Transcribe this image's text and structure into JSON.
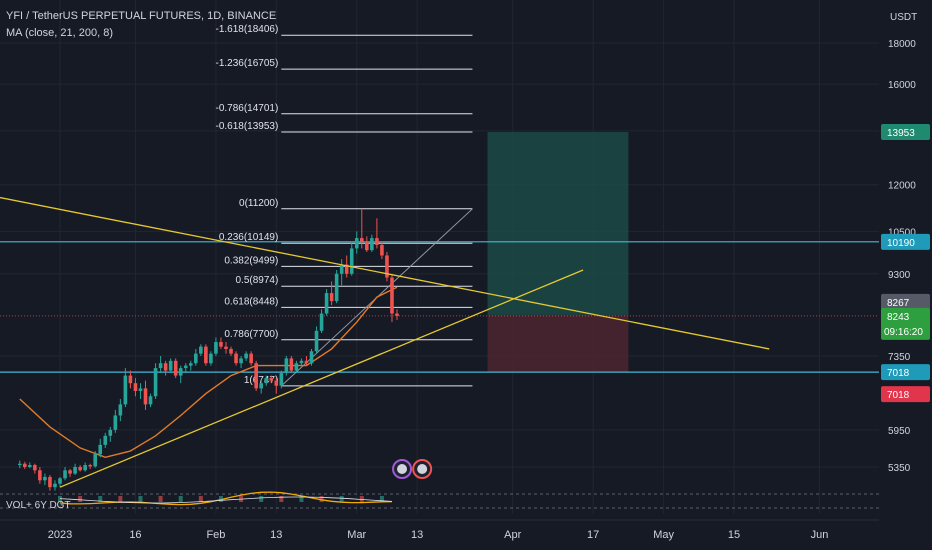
{
  "header": {
    "symbol": "YFI / TetherUS PERPETUAL FUTURES, 1D, BINANCE",
    "indicator": "MA (close, 21, 200, 8)",
    "volume_indicator": "VOL+ 6Y DGT"
  },
  "colors": {
    "background": "#161a25",
    "grid": "#222631",
    "text": "#d1d4dc",
    "up": "#26a69a",
    "down": "#ef5350",
    "ma": "#e07b2b",
    "trendline": "#e6c930",
    "horizontal": "#40b9d6",
    "target_zone": "#1b4a45",
    "stop_zone": "#4a2530",
    "fib": "#e0e3eb"
  },
  "chart_data": {
    "type": "candlestick",
    "title": "YFI / TetherUS PERPETUAL FUTURES, 1D, BINANCE",
    "xlabel": "",
    "ylabel": "USDT",
    "y_scale": "log",
    "ylim": [
      4900,
      19500
    ],
    "x_tick_labels": [
      "2023",
      "16",
      "Feb",
      "13",
      "Mar",
      "13",
      "Apr",
      "17",
      "May",
      "15",
      "Jun"
    ],
    "y_tick_labels": [
      "18000",
      "16000",
      "14000",
      "12000",
      "10500",
      "9300",
      "7350",
      "5950",
      "5350"
    ],
    "price_labels": [
      {
        "value": "13953",
        "style": "target"
      },
      {
        "value": "10190",
        "style": "line"
      },
      {
        "value": "8267",
        "style": "gray"
      },
      {
        "value": "8243",
        "style": "last",
        "sub": "09:16:20"
      },
      {
        "value": "7018",
        "style": "line"
      },
      {
        "value": "7018",
        "style": "stop"
      }
    ],
    "fib_levels": [
      {
        "label": "-1.618(18406)",
        "price": 18406
      },
      {
        "label": "-1.236(16705)",
        "price": 16705
      },
      {
        "label": "-0.786(14701)",
        "price": 14701
      },
      {
        "label": "-0.618(13953)",
        "price": 13953
      },
      {
        "label": "0(11200)",
        "price": 11200
      },
      {
        "label": "0.236(10149)",
        "price": 10149
      },
      {
        "label": "0.382(9499)",
        "price": 9499
      },
      {
        "label": "0.5(8974)",
        "price": 8974
      },
      {
        "label": "0.618(8448)",
        "price": 8448
      },
      {
        "label": "0.786(7700)",
        "price": 7700
      },
      {
        "label": "1(6747)",
        "price": 6747
      }
    ],
    "horizontal_lines": [
      10190,
      7018
    ],
    "position": {
      "entry": 8267,
      "target": 13953,
      "stop": 7018
    },
    "candles": [
      {
        "date": "2022-12-24",
        "o": 5380,
        "h": 5450,
        "l": 5330,
        "c": 5400
      },
      {
        "date": "2022-12-25",
        "o": 5400,
        "h": 5430,
        "l": 5320,
        "c": 5350
      },
      {
        "date": "2022-12-26",
        "o": 5350,
        "h": 5420,
        "l": 5330,
        "c": 5380
      },
      {
        "date": "2022-12-27",
        "o": 5380,
        "h": 5400,
        "l": 5250,
        "c": 5300
      },
      {
        "date": "2022-12-28",
        "o": 5300,
        "h": 5350,
        "l": 5100,
        "c": 5150
      },
      {
        "date": "2022-12-29",
        "o": 5150,
        "h": 5250,
        "l": 5080,
        "c": 5200
      },
      {
        "date": "2022-12-30",
        "o": 5200,
        "h": 5230,
        "l": 5000,
        "c": 5050
      },
      {
        "date": "2022-12-31",
        "o": 5050,
        "h": 5150,
        "l": 5000,
        "c": 5100
      },
      {
        "date": "2023-01-01",
        "o": 5100,
        "h": 5200,
        "l": 5050,
        "c": 5180
      },
      {
        "date": "2023-01-02",
        "o": 5180,
        "h": 5350,
        "l": 5150,
        "c": 5300
      },
      {
        "date": "2023-01-03",
        "o": 5300,
        "h": 5320,
        "l": 5200,
        "c": 5250
      },
      {
        "date": "2023-01-04",
        "o": 5250,
        "h": 5400,
        "l": 5230,
        "c": 5350
      },
      {
        "date": "2023-01-05",
        "o": 5350,
        "h": 5380,
        "l": 5280,
        "c": 5300
      },
      {
        "date": "2023-01-06",
        "o": 5300,
        "h": 5420,
        "l": 5280,
        "c": 5380
      },
      {
        "date": "2023-01-07",
        "o": 5380,
        "h": 5400,
        "l": 5320,
        "c": 5360
      },
      {
        "date": "2023-01-08",
        "o": 5360,
        "h": 5600,
        "l": 5340,
        "c": 5550
      },
      {
        "date": "2023-01-09",
        "o": 5550,
        "h": 5800,
        "l": 5500,
        "c": 5700
      },
      {
        "date": "2023-01-10",
        "o": 5700,
        "h": 5900,
        "l": 5650,
        "c": 5850
      },
      {
        "date": "2023-01-11",
        "o": 5850,
        "h": 6000,
        "l": 5750,
        "c": 5950
      },
      {
        "date": "2023-01-12",
        "o": 5950,
        "h": 6300,
        "l": 5900,
        "c": 6200
      },
      {
        "date": "2023-01-13",
        "o": 6200,
        "h": 6500,
        "l": 6100,
        "c": 6400
      },
      {
        "date": "2023-01-14",
        "o": 6400,
        "h": 7100,
        "l": 6350,
        "c": 6950
      },
      {
        "date": "2023-01-15",
        "o": 6950,
        "h": 7050,
        "l": 6700,
        "c": 6800
      },
      {
        "date": "2023-01-16",
        "o": 6800,
        "h": 6900,
        "l": 6550,
        "c": 6650
      },
      {
        "date": "2023-01-17",
        "o": 6650,
        "h": 6800,
        "l": 6500,
        "c": 6700
      },
      {
        "date": "2023-01-18",
        "o": 6700,
        "h": 6850,
        "l": 6300,
        "c": 6400
      },
      {
        "date": "2023-01-19",
        "o": 6400,
        "h": 6600,
        "l": 6350,
        "c": 6550
      },
      {
        "date": "2023-01-20",
        "o": 6550,
        "h": 7200,
        "l": 6500,
        "c": 7100
      },
      {
        "date": "2023-01-21",
        "o": 7100,
        "h": 7350,
        "l": 7000,
        "c": 7200
      },
      {
        "date": "2023-01-22",
        "o": 7200,
        "h": 7250,
        "l": 6950,
        "c": 7050
      },
      {
        "date": "2023-01-23",
        "o": 7050,
        "h": 7300,
        "l": 7000,
        "c": 7250
      },
      {
        "date": "2023-01-24",
        "o": 7250,
        "h": 7300,
        "l": 6900,
        "c": 6950
      },
      {
        "date": "2023-01-25",
        "o": 6950,
        "h": 7150,
        "l": 6800,
        "c": 7100
      },
      {
        "date": "2023-01-26",
        "o": 7100,
        "h": 7200,
        "l": 7000,
        "c": 7150
      },
      {
        "date": "2023-01-27",
        "o": 7150,
        "h": 7250,
        "l": 7050,
        "c": 7200
      },
      {
        "date": "2023-01-28",
        "o": 7200,
        "h": 7500,
        "l": 7150,
        "c": 7400
      },
      {
        "date": "2023-01-29",
        "o": 7400,
        "h": 7600,
        "l": 7350,
        "c": 7550
      },
      {
        "date": "2023-01-30",
        "o": 7550,
        "h": 7600,
        "l": 7150,
        "c": 7200
      },
      {
        "date": "2023-01-31",
        "o": 7200,
        "h": 7450,
        "l": 7150,
        "c": 7400
      },
      {
        "date": "2023-02-01",
        "o": 7400,
        "h": 7750,
        "l": 7350,
        "c": 7650
      },
      {
        "date": "2023-02-02",
        "o": 7650,
        "h": 7750,
        "l": 7500,
        "c": 7550
      },
      {
        "date": "2023-02-03",
        "o": 7550,
        "h": 7650,
        "l": 7400,
        "c": 7500
      },
      {
        "date": "2023-02-04",
        "o": 7500,
        "h": 7550,
        "l": 7350,
        "c": 7400
      },
      {
        "date": "2023-02-05",
        "o": 7400,
        "h": 7450,
        "l": 7150,
        "c": 7200
      },
      {
        "date": "2023-02-06",
        "o": 7200,
        "h": 7350,
        "l": 7100,
        "c": 7300
      },
      {
        "date": "2023-02-07",
        "o": 7300,
        "h": 7450,
        "l": 7250,
        "c": 7400
      },
      {
        "date": "2023-02-08",
        "o": 7400,
        "h": 7450,
        "l": 7150,
        "c": 7200
      },
      {
        "date": "2023-02-09",
        "o": 7200,
        "h": 7250,
        "l": 6650,
        "c": 6700
      },
      {
        "date": "2023-02-10",
        "o": 6700,
        "h": 6850,
        "l": 6600,
        "c": 6800
      },
      {
        "date": "2023-02-11",
        "o": 6800,
        "h": 6950,
        "l": 6750,
        "c": 6900
      },
      {
        "date": "2023-02-12",
        "o": 6900,
        "h": 6950,
        "l": 6800,
        "c": 6850
      },
      {
        "date": "2023-02-13",
        "o": 6850,
        "h": 6900,
        "l": 6600,
        "c": 6750
      },
      {
        "date": "2023-02-14",
        "o": 6750,
        "h": 7050,
        "l": 6700,
        "c": 7000
      },
      {
        "date": "2023-02-15",
        "o": 7000,
        "h": 7350,
        "l": 6950,
        "c": 7300
      },
      {
        "date": "2023-02-16",
        "o": 7300,
        "h": 7350,
        "l": 7000,
        "c": 7050
      },
      {
        "date": "2023-02-17",
        "o": 7050,
        "h": 7250,
        "l": 7000,
        "c": 7200
      },
      {
        "date": "2023-02-18",
        "o": 7200,
        "h": 7300,
        "l": 7150,
        "c": 7250
      },
      {
        "date": "2023-02-19",
        "o": 7250,
        "h": 7350,
        "l": 7150,
        "c": 7200
      },
      {
        "date": "2023-02-20",
        "o": 7200,
        "h": 7500,
        "l": 7150,
        "c": 7450
      },
      {
        "date": "2023-02-21",
        "o": 7450,
        "h": 8000,
        "l": 7400,
        "c": 7900
      },
      {
        "date": "2023-02-22",
        "o": 7900,
        "h": 8400,
        "l": 7850,
        "c": 8300
      },
      {
        "date": "2023-02-23",
        "o": 8300,
        "h": 8900,
        "l": 8250,
        "c": 8800
      },
      {
        "date": "2023-02-24",
        "o": 8800,
        "h": 9100,
        "l": 8500,
        "c": 8600
      },
      {
        "date": "2023-02-25",
        "o": 8600,
        "h": 9400,
        "l": 8550,
        "c": 9300
      },
      {
        "date": "2023-02-26",
        "o": 9300,
        "h": 9700,
        "l": 9000,
        "c": 9550
      },
      {
        "date": "2023-02-27",
        "o": 9550,
        "h": 9800,
        "l": 9200,
        "c": 9300
      },
      {
        "date": "2023-02-28",
        "o": 9300,
        "h": 10200,
        "l": 9250,
        "c": 10000
      },
      {
        "date": "2023-03-01",
        "o": 10000,
        "h": 10500,
        "l": 9850,
        "c": 10300
      },
      {
        "date": "2023-03-02",
        "o": 10300,
        "h": 11200,
        "l": 10000,
        "c": 10200
      },
      {
        "date": "2023-03-03",
        "o": 10200,
        "h": 10350,
        "l": 9900,
        "c": 9950
      },
      {
        "date": "2023-03-04",
        "o": 9950,
        "h": 10400,
        "l": 9900,
        "c": 10300
      },
      {
        "date": "2023-03-05",
        "o": 10300,
        "h": 10900,
        "l": 10000,
        "c": 10100
      },
      {
        "date": "2023-03-06",
        "o": 10100,
        "h": 10200,
        "l": 9700,
        "c": 9800
      },
      {
        "date": "2023-03-07",
        "o": 9800,
        "h": 9900,
        "l": 9100,
        "c": 9200
      },
      {
        "date": "2023-03-08",
        "o": 9200,
        "h": 9300,
        "l": 8100,
        "c": 8300
      },
      {
        "date": "2023-03-09",
        "o": 8300,
        "h": 8400,
        "l": 8150,
        "c": 8243
      }
    ],
    "ma": [
      {
        "date": "2022-12-24",
        "v": 6500
      },
      {
        "date": "2022-12-30",
        "v": 6000
      },
      {
        "date": "2023-01-05",
        "v": 5650
      },
      {
        "date": "2023-01-10",
        "v": 5500
      },
      {
        "date": "2023-01-15",
        "v": 5600
      },
      {
        "date": "2023-01-20",
        "v": 5850
      },
      {
        "date": "2023-01-25",
        "v": 6200
      },
      {
        "date": "2023-01-30",
        "v": 6600
      },
      {
        "date": "2023-02-04",
        "v": 6950
      },
      {
        "date": "2023-02-09",
        "v": 7150
      },
      {
        "date": "2023-02-14",
        "v": 7150
      },
      {
        "date": "2023-02-19",
        "v": 7150
      },
      {
        "date": "2023-02-24",
        "v": 7500
      },
      {
        "date": "2023-03-01",
        "v": 8100
      },
      {
        "date": "2023-03-05",
        "v": 8700
      },
      {
        "date": "2023-03-09",
        "v": 8950
      }
    ],
    "trendlines": [
      {
        "p1": {
          "date": "2022-12-10",
          "price": 11900
        },
        "p2": {
          "date": "2023-05-22",
          "price": 7500
        }
      },
      {
        "p1": {
          "date": "2023-01-01",
          "price": 5050
        },
        "p2": {
          "date": "2023-04-15",
          "price": 9400
        }
      }
    ]
  }
}
